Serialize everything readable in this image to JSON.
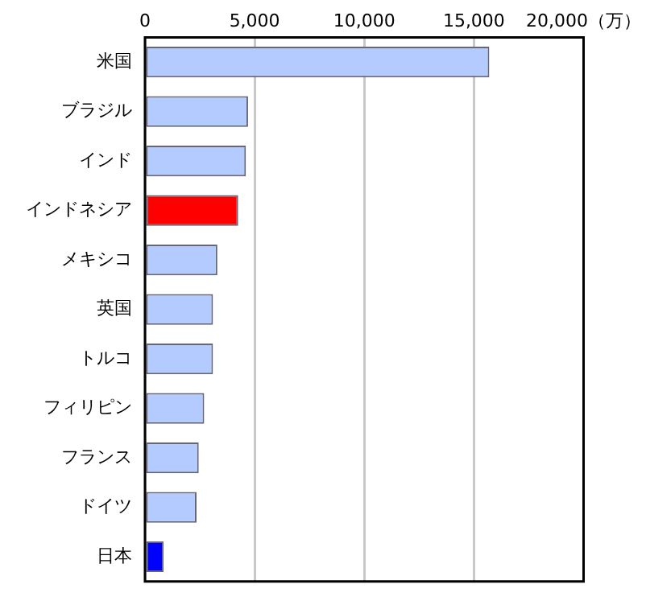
{
  "chart_data": {
    "type": "bar",
    "orientation": "horizontal",
    "categories": [
      "米国",
      "ブラジル",
      "インド",
      "インドネシア",
      "メキシコ",
      "英国",
      "トルコ",
      "フィリピン",
      "フランス",
      "ドイツ",
      "日本"
    ],
    "values": [
      15700,
      4700,
      4600,
      4250,
      3300,
      3100,
      3100,
      2700,
      2450,
      2350,
      850
    ],
    "colors": [
      "#b3cbfe",
      "#b3cbfe",
      "#b3cbfe",
      "#ff0000",
      "#b3cbfe",
      "#b3cbfe",
      "#b3cbfe",
      "#b3cbfe",
      "#b3cbfe",
      "#b3cbfe",
      "#0000ff"
    ],
    "xlim": [
      0,
      20000
    ],
    "xticks": [
      0,
      {
        "value": 5000,
        "label": "5,000"
      },
      {
        "value": 10000,
        "label": "10,000"
      },
      {
        "value": 15000,
        "label": "15,000"
      },
      {
        "value": 20000,
        "label": "20,000（万）"
      }
    ],
    "grid": "x",
    "legend": false
  }
}
